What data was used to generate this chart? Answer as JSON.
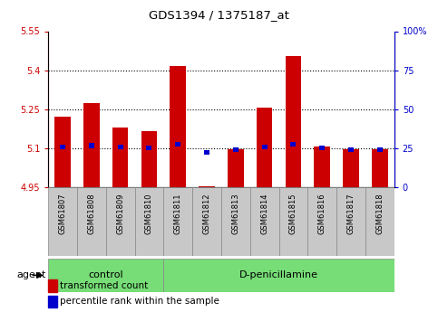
{
  "title": "GDS1394 / 1375187_at",
  "samples": [
    "GSM61807",
    "GSM61808",
    "GSM61809",
    "GSM61810",
    "GSM61811",
    "GSM61812",
    "GSM61813",
    "GSM61814",
    "GSM61815",
    "GSM61816",
    "GSM61817",
    "GSM61818"
  ],
  "red_values": [
    5.22,
    5.275,
    5.18,
    5.165,
    5.415,
    4.955,
    5.095,
    5.255,
    5.455,
    5.105,
    5.095,
    5.095
  ],
  "blue_values": [
    5.105,
    5.11,
    5.105,
    5.1,
    5.115,
    5.085,
    5.095,
    5.105,
    5.115,
    5.1,
    5.095,
    5.095
  ],
  "ylim_left": [
    4.95,
    5.55
  ],
  "ylim_right": [
    0,
    100
  ],
  "yticks_left": [
    4.95,
    5.1,
    5.25,
    5.4,
    5.55
  ],
  "yticks_right": [
    0,
    25,
    50,
    75,
    100
  ],
  "ytick_labels_right": [
    "0",
    "25",
    "50",
    "75",
    "100%"
  ],
  "control_count": 4,
  "control_label": "control",
  "treatment_label": "D-penicillamine",
  "agent_label": "agent",
  "legend_red": "transformed count",
  "legend_blue": "percentile rank within the sample",
  "bar_width": 0.55,
  "red_color": "#cc0000",
  "blue_color": "#0000cc",
  "green_bg": "#77dd77",
  "gray_bg": "#c8c8c8",
  "white_bg": "#ffffff",
  "dotted_line_color": "#000000",
  "title_color": "#000000",
  "left_tick_color": "#cc0000",
  "right_tick_color": "#0000cc"
}
